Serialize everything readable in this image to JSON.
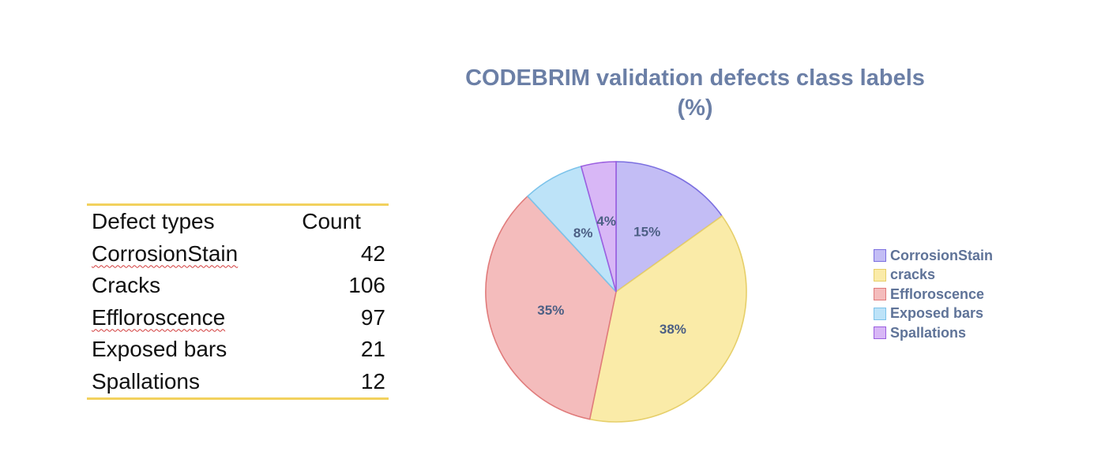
{
  "table": {
    "headers": [
      "Defect types",
      "Count"
    ],
    "rows": [
      {
        "type": "CorrosionStain",
        "count": "42"
      },
      {
        "type": "Cracks",
        "count": "106"
      },
      {
        "type": "Effloroscence",
        "count": "97"
      },
      {
        "type": "Exposed bars",
        "count": "21"
      },
      {
        "type": "Spallations",
        "count": "12"
      }
    ]
  },
  "chart_data": {
    "type": "pie",
    "title": "CODEBRIM validation defects class labels (%)",
    "title_lines": [
      "CODEBRIM validation defects class labels",
      "(%)"
    ],
    "legend_placement": "right",
    "slices": [
      {
        "label": "CorrosionStain",
        "value": 42,
        "pct_label": "15%",
        "fill": "#c3bdf5",
        "stroke": "#7b6fe0"
      },
      {
        "label": "cracks",
        "value": 106,
        "pct_label": "38%",
        "fill": "#faeba8",
        "stroke": "#e6cf6a"
      },
      {
        "label": "Effloroscence",
        "value": 97,
        "pct_label": "35%",
        "fill": "#f4bcbc",
        "stroke": "#e07b7b"
      },
      {
        "label": "Exposed bars",
        "value": 21,
        "pct_label": "8%",
        "fill": "#bde3f8",
        "stroke": "#7cc3ea"
      },
      {
        "label": "Spallations",
        "value": 12,
        "pct_label": "4%",
        "fill": "#d8b7f6",
        "stroke": "#9b5fe0"
      }
    ]
  }
}
